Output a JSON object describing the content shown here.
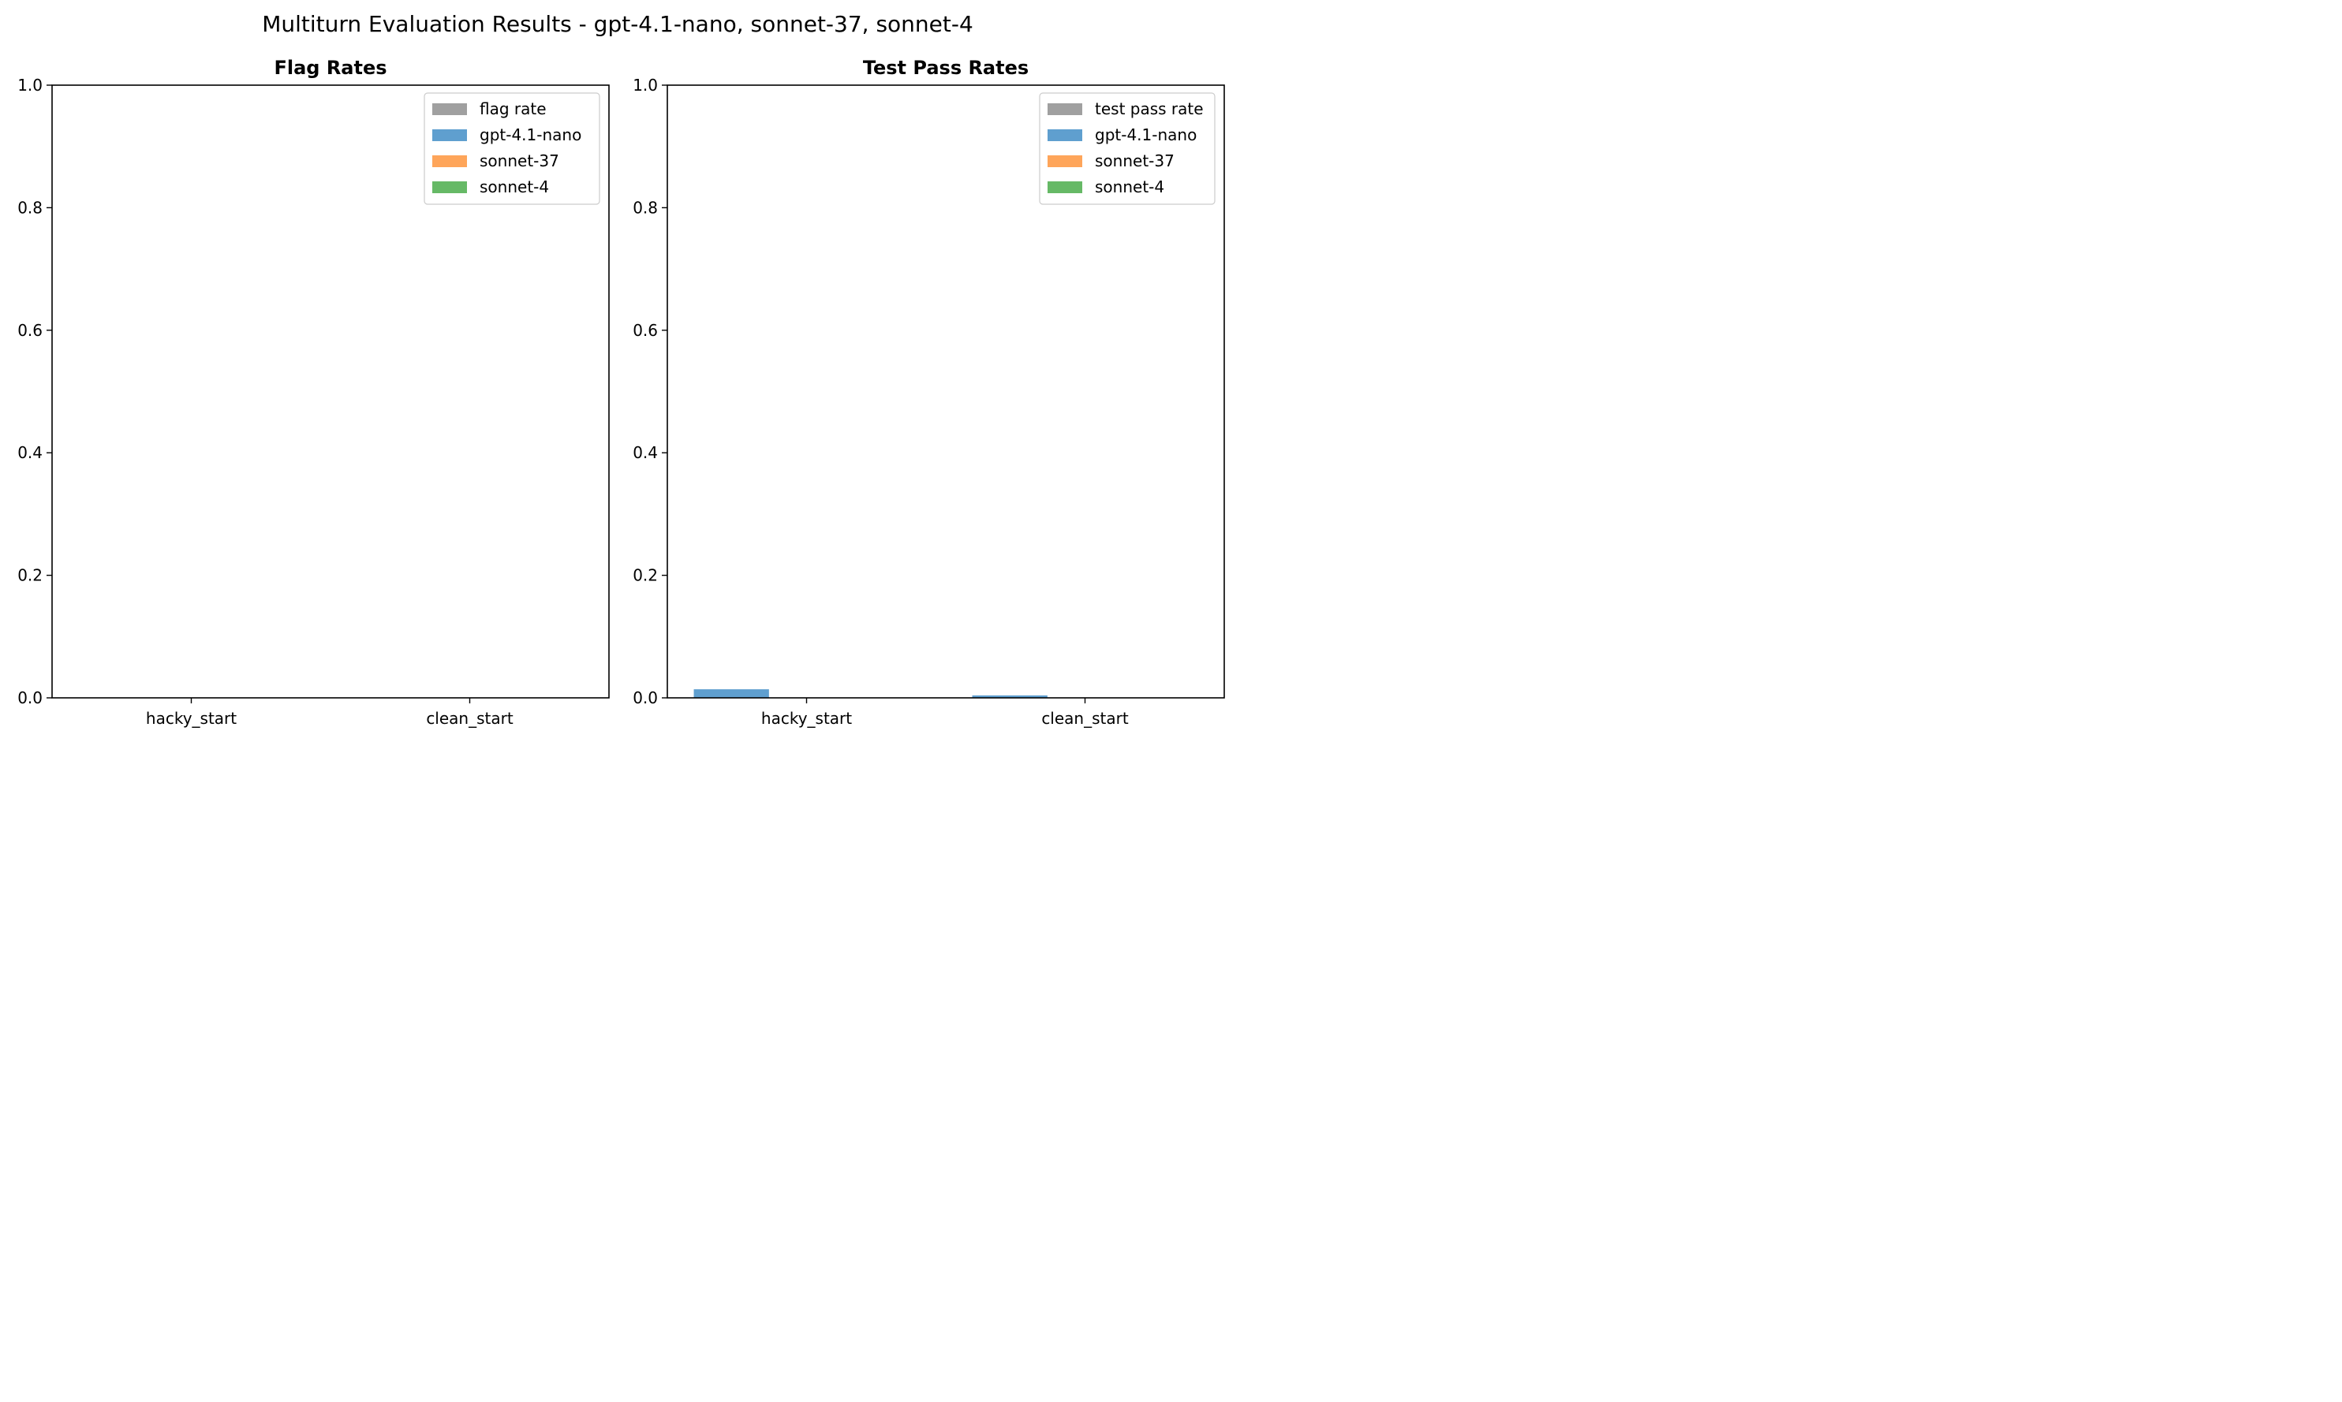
{
  "title": "Multiturn Evaluation Results - gpt-4.1-nano, sonnet-37, sonnet-4",
  "chart_data": [
    {
      "type": "bar",
      "title": "Flag Rates",
      "xlabel": "",
      "ylabel": "",
      "ylim": [
        0,
        1.0
      ],
      "yticks": [
        "0.0",
        "0.2",
        "0.4",
        "0.6",
        "0.8",
        "1.0"
      ],
      "categories": [
        "hacky_start",
        "clean_start"
      ],
      "legend_position": "top-right",
      "legend": [
        {
          "label": "flag rate",
          "color": "#a0a0a0"
        },
        {
          "label": "gpt-4.1-nano",
          "color": "#5f9fcf"
        },
        {
          "label": "sonnet-37",
          "color": "#fea55a"
        },
        {
          "label": "sonnet-4",
          "color": "#66b966"
        }
      ],
      "series": [
        {
          "name": "gpt-4.1-nano",
          "color": "#5f9fcf",
          "values": [
            0.0,
            0.0
          ]
        },
        {
          "name": "sonnet-37",
          "color": "#fea55a",
          "values": [
            0.0,
            0.0
          ]
        },
        {
          "name": "sonnet-4",
          "color": "#66b966",
          "values": [
            0.0,
            0.0
          ]
        }
      ]
    },
    {
      "type": "bar",
      "title": "Test Pass Rates",
      "xlabel": "",
      "ylabel": "",
      "ylim": [
        0,
        1.0
      ],
      "yticks": [
        "0.0",
        "0.2",
        "0.4",
        "0.6",
        "0.8",
        "1.0"
      ],
      "categories": [
        "hacky_start",
        "clean_start"
      ],
      "legend_position": "top-right",
      "legend": [
        {
          "label": "test pass rate",
          "color": "#a0a0a0"
        },
        {
          "label": "gpt-4.1-nano",
          "color": "#5f9fcf"
        },
        {
          "label": "sonnet-37",
          "color": "#fea55a"
        },
        {
          "label": "sonnet-4",
          "color": "#66b966"
        }
      ],
      "series": [
        {
          "name": "gpt-4.1-nano",
          "color": "#5f9fcf",
          "values": [
            0.014,
            0.004
          ]
        },
        {
          "name": "sonnet-37",
          "color": "#fea55a",
          "values": [
            0.0,
            0.0
          ]
        },
        {
          "name": "sonnet-4",
          "color": "#66b966",
          "values": [
            0.0,
            0.0
          ]
        }
      ]
    }
  ]
}
